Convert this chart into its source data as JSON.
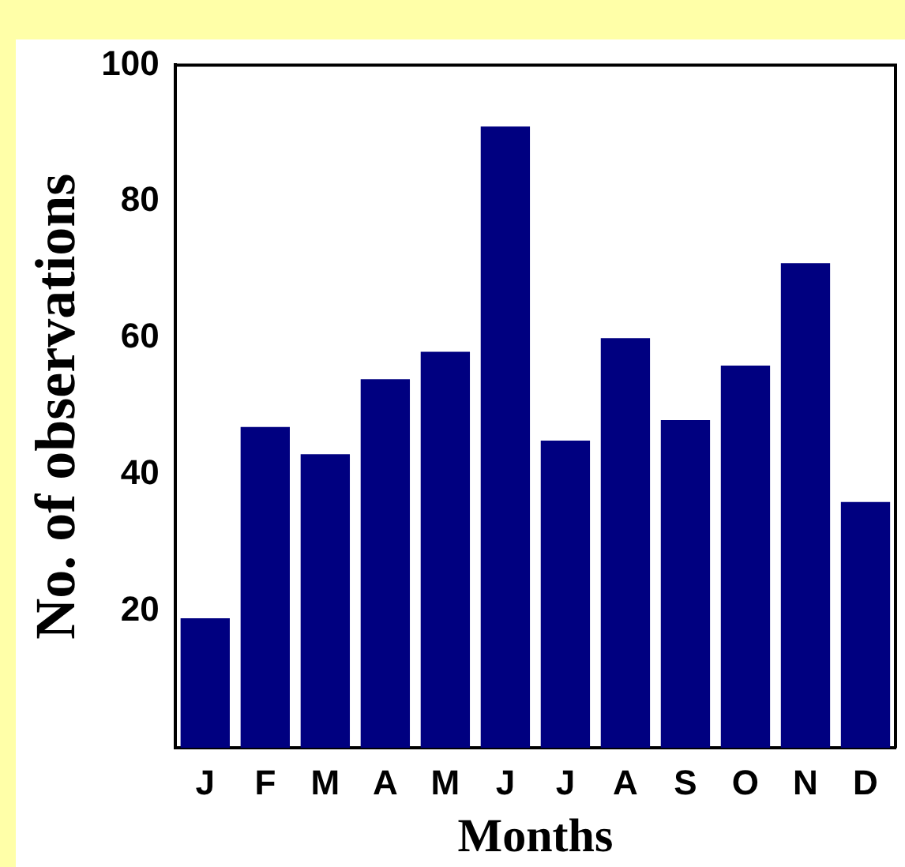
{
  "chart_data": {
    "type": "bar",
    "xlabel": "Months",
    "ylabel": "No. of observations",
    "categories": [
      "J",
      "F",
      "M",
      "A",
      "M",
      "J",
      "J",
      "A",
      "S",
      "O",
      "N",
      "D"
    ],
    "values": [
      19,
      47,
      43,
      54,
      58,
      91,
      45,
      60,
      48,
      56,
      71,
      36
    ],
    "color": "#000080",
    "ylim": [
      0,
      100
    ],
    "yticks": [
      20,
      40,
      60,
      80,
      100
    ],
    "grid": false,
    "legend": false
  }
}
